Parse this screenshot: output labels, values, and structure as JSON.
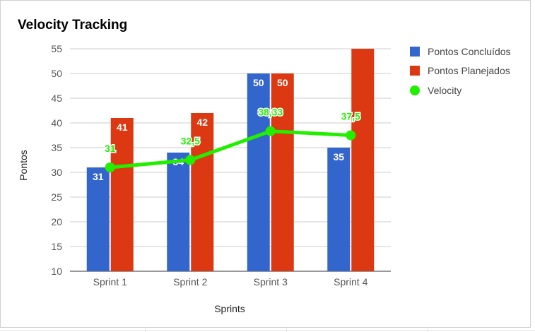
{
  "colors": {
    "concluidos": "#3366cc",
    "planejados": "#dc3912",
    "velocity": "#22ee00",
    "grid": "#cccccc"
  },
  "chart_data": {
    "type": "bar",
    "title": "Velocity Tracking",
    "xlabel": "Sprints",
    "ylabel": "Pontos",
    "categories": [
      "Sprint 1",
      "Sprint 2",
      "Sprint 3",
      "Sprint 4"
    ],
    "ylim": [
      10,
      55
    ],
    "yticks": [
      10,
      15,
      20,
      25,
      30,
      35,
      40,
      45,
      50,
      55
    ],
    "grid": true,
    "legend_position": "right",
    "series": [
      {
        "name": "Pontos Concluídos",
        "type": "bar",
        "values": [
          31,
          34,
          50,
          35
        ],
        "labels": [
          "31",
          "34",
          "50",
          "35"
        ]
      },
      {
        "name": "Pontos Planejados",
        "type": "bar",
        "values": [
          41,
          42,
          50,
          55
        ],
        "labels": [
          "41",
          "42",
          "50",
          ""
        ]
      },
      {
        "name": "Velocity",
        "type": "line",
        "values": [
          31,
          32.5,
          38.33,
          37.5
        ],
        "labels": [
          "31",
          "32,5",
          "38,33",
          "37,5"
        ]
      }
    ]
  }
}
